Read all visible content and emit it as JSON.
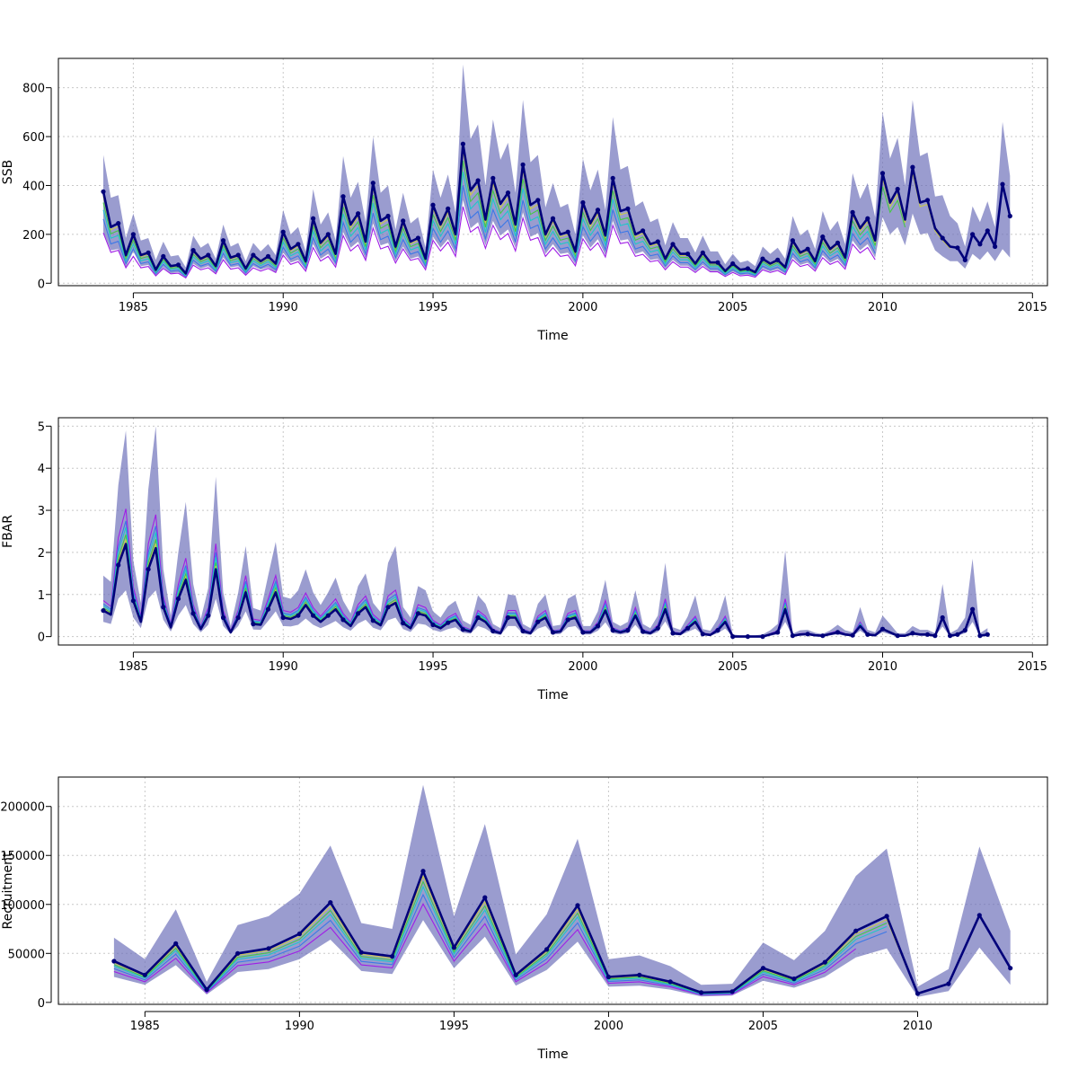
{
  "colors": {
    "band": "#6a6db8",
    "main": "#00007a",
    "black": "#000000",
    "dark_red": "#7a1010",
    "yellow": "#c9c94a",
    "green": "#46c846",
    "cyan": "#1ec8c8",
    "blue": "#3c78e6",
    "purple": "#a01ee6"
  },
  "chart_data": [
    {
      "type": "line",
      "id": "ssb",
      "xlabel": "Time",
      "ylabel": "SSB",
      "xlim": [
        1982.5,
        2015.5
      ],
      "ylim": [
        -10,
        920
      ],
      "xticks": [
        1985,
        1990,
        1995,
        2000,
        2005,
        2010,
        2015
      ],
      "yticks": [
        0,
        200,
        400,
        600,
        800
      ],
      "grid": true,
      "x_start": 1984,
      "x_step": 0.25,
      "values": [
        375,
        230,
        245,
        115,
        200,
        115,
        125,
        55,
        110,
        70,
        75,
        40,
        135,
        100,
        115,
        70,
        175,
        105,
        115,
        60,
        115,
        90,
        110,
        80,
        210,
        140,
        160,
        90,
        265,
        165,
        200,
        120,
        355,
        240,
        285,
        170,
        410,
        255,
        275,
        150,
        255,
        170,
        185,
        100,
        320,
        240,
        305,
        200,
        570,
        380,
        420,
        260,
        430,
        325,
        370,
        240,
        485,
        320,
        340,
        200,
        265,
        200,
        210,
        130,
        330,
        245,
        300,
        195,
        430,
        295,
        305,
        200,
        215,
        160,
        170,
        100,
        160,
        120,
        120,
        80,
        125,
        85,
        85,
        50,
        80,
        55,
        60,
        45,
        100,
        80,
        95,
        65,
        175,
        125,
        140,
        90,
        190,
        140,
        165,
        105,
        290,
        225,
        265,
        175,
        450,
        330,
        385,
        260,
        475,
        330,
        340,
        225,
        185,
        150,
        145,
        95,
        200,
        160,
        215,
        150,
        405,
        275
      ],
      "band_lower": [
        210,
        135,
        140,
        65,
        130,
        70,
        75,
        30,
        65,
        40,
        45,
        22,
        80,
        60,
        70,
        40,
        105,
        65,
        70,
        35,
        70,
        55,
        65,
        45,
        125,
        85,
        95,
        55,
        160,
        100,
        120,
        72,
        210,
        145,
        170,
        100,
        245,
        155,
        165,
        90,
        150,
        100,
        110,
        60,
        190,
        145,
        180,
        120,
        340,
        225,
        250,
        155,
        255,
        195,
        220,
        145,
        290,
        190,
        205,
        120,
        160,
        120,
        125,
        78,
        195,
        145,
        180,
        115,
        255,
        175,
        180,
        120,
        130,
        95,
        100,
        60,
        95,
        72,
        72,
        48,
        75,
        50,
        50,
        30,
        48,
        33,
        36,
        27,
        60,
        48,
        57,
        39,
        105,
        75,
        84,
        54,
        115,
        84,
        99,
        63,
        175,
        135,
        160,
        105,
        270,
        200,
        230,
        155,
        285,
        200,
        205,
        135,
        110,
        90,
        90,
        60,
        120,
        95,
        130,
        90,
        140,
        105
      ],
      "band_upper": [
        525,
        350,
        360,
        185,
        285,
        175,
        185,
        95,
        170,
        110,
        115,
        65,
        195,
        145,
        165,
        100,
        240,
        150,
        165,
        90,
        165,
        130,
        160,
        115,
        300,
        200,
        230,
        130,
        385,
        240,
        290,
        175,
        520,
        350,
        415,
        250,
        600,
        370,
        400,
        220,
        370,
        245,
        270,
        145,
        465,
        350,
        445,
        290,
        895,
        590,
        650,
        400,
        670,
        505,
        575,
        370,
        750,
        495,
        525,
        310,
        410,
        310,
        325,
        200,
        510,
        380,
        465,
        300,
        680,
        465,
        480,
        315,
        335,
        250,
        265,
        155,
        250,
        185,
        185,
        125,
        195,
        130,
        130,
        78,
        120,
        85,
        93,
        70,
        150,
        120,
        145,
        100,
        275,
        195,
        220,
        140,
        295,
        215,
        255,
        160,
        450,
        345,
        410,
        270,
        700,
        510,
        595,
        400,
        750,
        520,
        535,
        355,
        360,
        275,
        245,
        150,
        315,
        250,
        335,
        230,
        660,
        440
      ],
      "retros": [
        {
          "color_key": "dark_red",
          "n": 120,
          "offset": 0
        },
        {
          "color_key": "yellow",
          "n": 114,
          "offset": -0.05
        },
        {
          "color_key": "green",
          "n": 108,
          "offset": -0.12
        },
        {
          "color_key": "cyan",
          "n": 104,
          "offset": -0.2
        },
        {
          "color_key": "blue",
          "n": 104,
          "offset": -0.3
        },
        {
          "color_key": "purple",
          "n": 104,
          "offset": -0.45
        }
      ]
    },
    {
      "type": "line",
      "id": "fbar",
      "xlabel": "Time",
      "ylabel": "FBAR",
      "xlim": [
        1982.5,
        2015.5
      ],
      "ylim": [
        -0.2,
        5.2
      ],
      "xticks": [
        1985,
        1990,
        1995,
        2000,
        2005,
        2010,
        2015
      ],
      "yticks": [
        0,
        1,
        2,
        3,
        4,
        5
      ],
      "grid": true,
      "x_start": 1984,
      "x_step": 0.25,
      "values": [
        0.62,
        0.52,
        1.7,
        2.2,
        0.85,
        0.35,
        1.6,
        2.1,
        0.7,
        0.22,
        0.9,
        1.35,
        0.55,
        0.18,
        0.5,
        1.6,
        0.45,
        0.1,
        0.45,
        1.05,
        0.3,
        0.28,
        0.65,
        1.05,
        0.45,
        0.42,
        0.5,
        0.75,
        0.5,
        0.35,
        0.5,
        0.65,
        0.4,
        0.25,
        0.55,
        0.7,
        0.38,
        0.27,
        0.7,
        0.8,
        0.32,
        0.2,
        0.55,
        0.5,
        0.28,
        0.2,
        0.33,
        0.4,
        0.17,
        0.12,
        0.45,
        0.35,
        0.13,
        0.08,
        0.45,
        0.45,
        0.13,
        0.08,
        0.35,
        0.45,
        0.1,
        0.12,
        0.4,
        0.45,
        0.1,
        0.1,
        0.25,
        0.62,
        0.15,
        0.1,
        0.15,
        0.5,
        0.12,
        0.08,
        0.2,
        0.65,
        0.08,
        0.06,
        0.2,
        0.35,
        0.06,
        0.04,
        0.15,
        0.35,
        0.0,
        0.0,
        0.0,
        0.0,
        0.0,
        0.05,
        0.1,
        0.65,
        0.02,
        0.05,
        0.06,
        0.03,
        0.02,
        0.06,
        0.1,
        0.05,
        0.03,
        0.25,
        0.05,
        0.03,
        0.18,
        0.1,
        0.02,
        0.02,
        0.08,
        0.05,
        0.05,
        0.02,
        0.45,
        0.02,
        0.05,
        0.15,
        0.65,
        0.02,
        0.05
      ],
      "band_lower": [
        0.35,
        0.3,
        0.9,
        1.1,
        0.45,
        0.2,
        0.9,
        1.1,
        0.4,
        0.12,
        0.5,
        0.75,
        0.3,
        0.1,
        0.28,
        0.9,
        0.25,
        0.06,
        0.25,
        0.6,
        0.17,
        0.16,
        0.37,
        0.6,
        0.25,
        0.24,
        0.28,
        0.43,
        0.28,
        0.2,
        0.28,
        0.37,
        0.22,
        0.14,
        0.31,
        0.4,
        0.21,
        0.15,
        0.39,
        0.45,
        0.18,
        0.11,
        0.31,
        0.28,
        0.16,
        0.11,
        0.18,
        0.22,
        0.09,
        0.07,
        0.25,
        0.19,
        0.07,
        0.04,
        0.25,
        0.25,
        0.07,
        0.04,
        0.19,
        0.25,
        0.05,
        0.06,
        0.22,
        0.25,
        0.05,
        0.05,
        0.14,
        0.34,
        0.08,
        0.05,
        0.08,
        0.28,
        0.06,
        0.04,
        0.11,
        0.36,
        0.04,
        0.03,
        0.11,
        0.19,
        0.03,
        0.02,
        0.08,
        0.19,
        0.0,
        0.0,
        0.0,
        0.0,
        0.0,
        0.02,
        0.05,
        0.35,
        0.01,
        0.02,
        0.03,
        0.01,
        0.01,
        0.03,
        0.05,
        0.02,
        0.01,
        0.14,
        0.02,
        0.01,
        0.1,
        0.05,
        0.01,
        0.01,
        0.04,
        0.02,
        0.02,
        0.01,
        0.24,
        0.01,
        0.02,
        0.08,
        0.35,
        0.01,
        0.02
      ],
      "band_upper": [
        1.45,
        1.3,
        3.6,
        4.9,
        1.8,
        0.8,
        3.5,
        5.0,
        1.6,
        0.5,
        2.0,
        3.2,
        1.25,
        0.42,
        1.15,
        3.8,
        1.05,
        0.25,
        1.05,
        2.15,
        0.68,
        0.62,
        1.45,
        2.25,
        0.95,
        0.9,
        1.1,
        1.6,
        1.05,
        0.75,
        1.05,
        1.4,
        0.85,
        0.55,
        1.2,
        1.5,
        0.8,
        0.58,
        1.75,
        2.15,
        0.7,
        0.45,
        1.2,
        1.1,
        0.6,
        0.45,
        0.72,
        0.85,
        0.38,
        0.28,
        0.98,
        0.78,
        0.3,
        0.2,
        1.0,
        0.98,
        0.3,
        0.2,
        0.78,
        1.0,
        0.25,
        0.28,
        0.9,
        1.0,
        0.25,
        0.25,
        0.6,
        1.35,
        0.35,
        0.25,
        0.35,
        1.1,
        0.3,
        0.2,
        0.5,
        1.75,
        0.22,
        0.16,
        0.48,
        0.98,
        0.18,
        0.14,
        0.42,
        0.98,
        0.05,
        0.03,
        0.03,
        0.03,
        0.05,
        0.15,
        0.3,
        2.05,
        0.07,
        0.15,
        0.16,
        0.09,
        0.06,
        0.15,
        0.28,
        0.15,
        0.1,
        0.7,
        0.16,
        0.1,
        0.5,
        0.3,
        0.08,
        0.08,
        0.25,
        0.16,
        0.16,
        0.08,
        1.25,
        0.08,
        0.18,
        0.45,
        1.85,
        0.08,
        0.2
      ],
      "retros": [
        {
          "color_key": "dark_red",
          "n": 120,
          "offset": 0
        },
        {
          "color_key": "yellow",
          "n": 114,
          "offset": 0.05
        },
        {
          "color_key": "green",
          "n": 108,
          "offset": 0.1
        },
        {
          "color_key": "cyan",
          "n": 104,
          "offset": 0.18
        },
        {
          "color_key": "blue",
          "n": 104,
          "offset": 0.25
        },
        {
          "color_key": "purple",
          "n": 104,
          "offset": 0.38
        }
      ]
    },
    {
      "type": "line",
      "id": "recruitment",
      "xlabel": "Time",
      "ylabel": "Recruitment",
      "xlim": [
        1982.2,
        2014.2
      ],
      "ylim": [
        -2000,
        230000
      ],
      "xticks": [
        1985,
        1990,
        1995,
        2000,
        2005,
        2010
      ],
      "yticks": [
        0,
        50000,
        100000,
        150000,
        200000
      ],
      "grid": true,
      "x_start": 1984,
      "x_step": 1,
      "values": [
        42000,
        28000,
        60000,
        13000,
        50000,
        55000,
        70000,
        102000,
        51000,
        47000,
        134000,
        56000,
        107000,
        28000,
        54000,
        99000,
        26000,
        28000,
        21000,
        10000,
        11000,
        35000,
        24000,
        41000,
        73000,
        88000,
        9000,
        19000,
        89000,
        35000
      ],
      "band_lower": [
        26000,
        18000,
        38000,
        8000,
        31000,
        34000,
        44000,
        64000,
        32000,
        29000,
        84000,
        35000,
        67000,
        17000,
        33000,
        62000,
        16000,
        17000,
        13000,
        6000,
        7000,
        22000,
        15000,
        26000,
        46000,
        55000,
        5500,
        11500,
        56000,
        18000
      ],
      "band_upper": [
        66000,
        44000,
        95000,
        21000,
        79000,
        88000,
        111000,
        160000,
        81000,
        75000,
        222000,
        88000,
        182000,
        49000,
        90000,
        167000,
        44000,
        48000,
        37000,
        18000,
        19000,
        61000,
        43000,
        73000,
        129000,
        157000,
        16000,
        34000,
        159000,
        73000
      ],
      "retros": [
        {
          "color_key": "dark_red",
          "n": 29,
          "offset": 0
        },
        {
          "color_key": "yellow",
          "n": 27,
          "offset": -0.04
        },
        {
          "color_key": "green",
          "n": 26,
          "offset": -0.08
        },
        {
          "color_key": "cyan",
          "n": 26,
          "offset": -0.12
        },
        {
          "color_key": "blue",
          "n": 26,
          "offset": -0.18
        },
        {
          "color_key": "purple",
          "n": 25,
          "offset": -0.25
        }
      ]
    }
  ]
}
